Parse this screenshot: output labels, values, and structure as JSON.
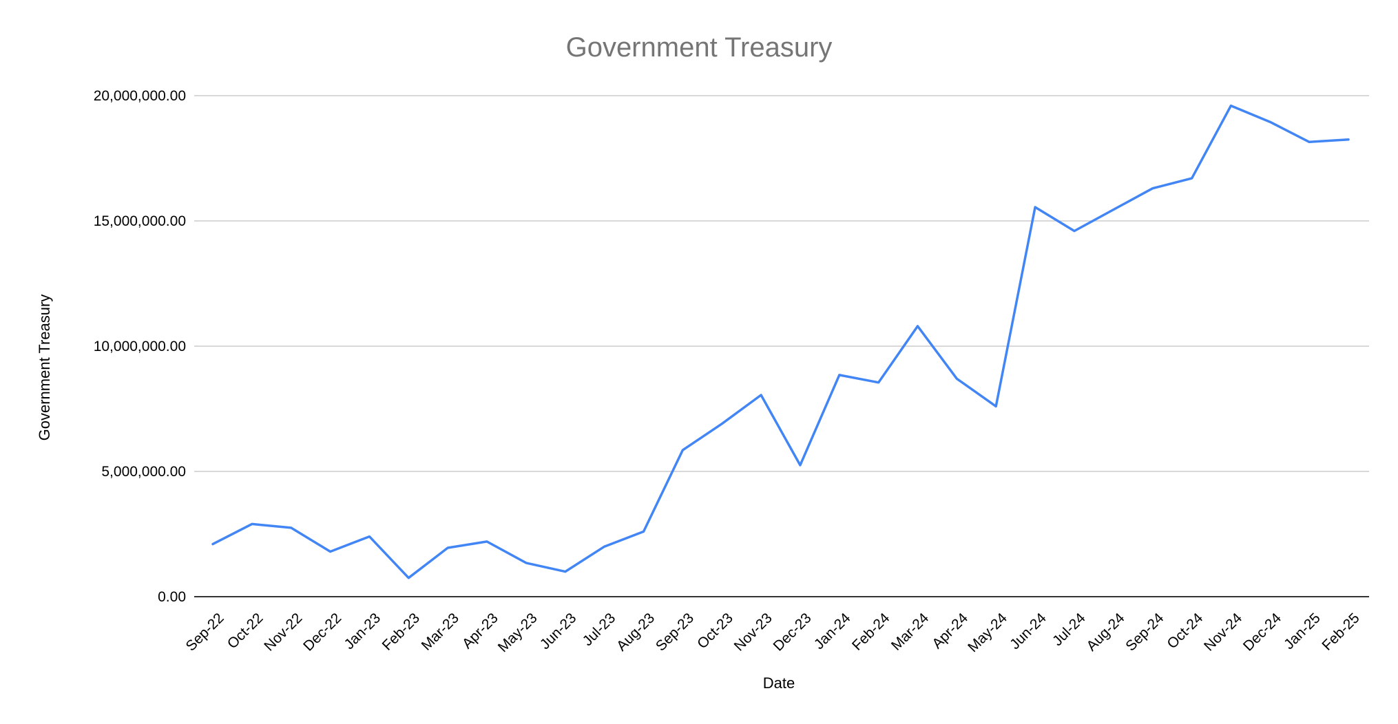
{
  "chart_data": {
    "type": "line",
    "title": "Government Treasury",
    "xlabel": "Date",
    "ylabel": "Government Treasury",
    "ylim": [
      0,
      20000000
    ],
    "yticks": [
      0,
      5000000,
      10000000,
      15000000,
      20000000
    ],
    "ytick_labels": [
      "0.00",
      "5,000,000.00",
      "10,000,000.00",
      "15,000,000.00",
      "20,000,000.00"
    ],
    "grid": true,
    "legend": "none",
    "categories": [
      "Sep-22",
      "Oct-22",
      "Nov-22",
      "Dec-22",
      "Jan-23",
      "Feb-23",
      "Mar-23",
      "Apr-23",
      "May-23",
      "Jun-23",
      "Jul-23",
      "Aug-23",
      "Sep-23",
      "Oct-23",
      "Nov-23",
      "Dec-23",
      "Jan-24",
      "Feb-24",
      "Mar-24",
      "Apr-24",
      "May-24",
      "Jun-24",
      "Jul-24",
      "Aug-24",
      "Sep-24",
      "Oct-24",
      "Nov-24",
      "Dec-24",
      "Jan-25",
      "Feb-25"
    ],
    "series": [
      {
        "color": "#4285f4",
        "values": [
          2100000,
          2900000,
          2750000,
          1800000,
          2400000,
          750000,
          1950000,
          2200000,
          1350000,
          1000000,
          2000000,
          2600000,
          5850000,
          6900000,
          8050000,
          5250000,
          8850000,
          8550000,
          10800000,
          8700000,
          7600000,
          15550000,
          14600000,
          15450000,
          16300000,
          16700000,
          19600000,
          18950000,
          18150000,
          18250000
        ]
      }
    ]
  }
}
